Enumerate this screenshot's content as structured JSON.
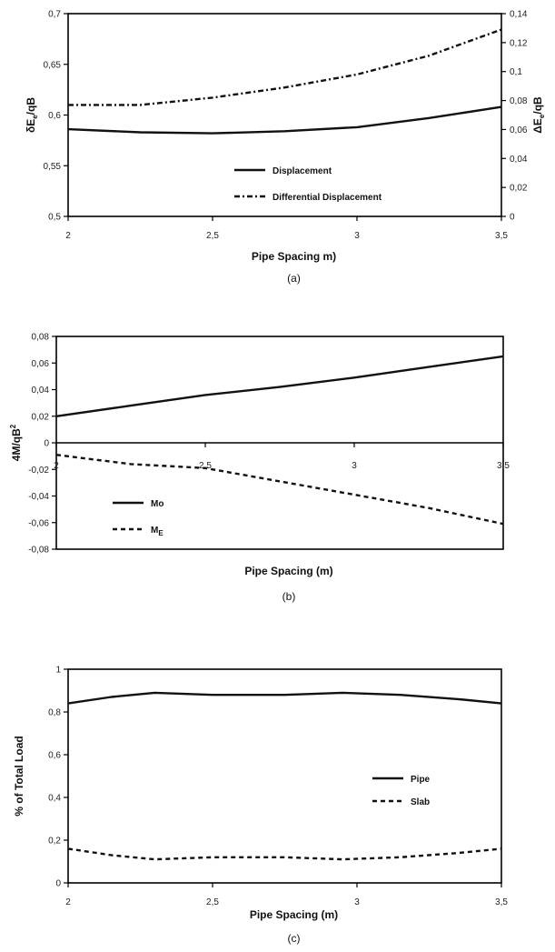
{
  "chart_data": [
    {
      "type": "line",
      "caption": "(a)",
      "xlabel": "Pipe Spacing m)",
      "ylabel": "δE",
      "ylabel_sub": "e",
      "ylabel_tail": "/qB",
      "y2label": "ΔE",
      "y2label_sub": "e",
      "y2label_tail": "/qB",
      "xlim": [
        2,
        3.5
      ],
      "ylim": [
        0.5,
        0.7
      ],
      "y2lim": [
        0,
        0.14
      ],
      "xticks": [
        "2",
        "2,5",
        "3",
        "3,5"
      ],
      "yticks": [
        "0,5",
        "0,55",
        "0,6",
        "0,65",
        "0,7"
      ],
      "y2ticks": [
        "0",
        "0,02",
        "0,04",
        "0,06",
        "0,08",
        "0,1",
        "0,12",
        "0,14"
      ],
      "legend_placement": "lower-center",
      "series": [
        {
          "name": "Displacement",
          "style": "solid",
          "axis": "left",
          "x": [
            2,
            2.25,
            2.5,
            2.75,
            3,
            3.25,
            3.5
          ],
          "y": [
            0.586,
            0.583,
            0.582,
            0.584,
            0.588,
            0.597,
            0.608
          ]
        },
        {
          "name": "Differential Displacement",
          "style": "dash-dot",
          "axis": "right",
          "x": [
            2,
            2.25,
            2.5,
            2.75,
            3,
            3.25,
            3.5
          ],
          "y": [
            0.077,
            0.077,
            0.082,
            0.089,
            0.098,
            0.111,
            0.129
          ]
        }
      ]
    },
    {
      "type": "line",
      "caption": "(b)",
      "xlabel": "Pipe Spacing (m)",
      "ylabel": "4M/qB",
      "ylabel_sup": "2",
      "xlim": [
        2,
        3.5
      ],
      "ylim": [
        -0.08,
        0.08
      ],
      "xticks": [
        "2",
        "2,5",
        "3",
        "3,5"
      ],
      "yticks": [
        "-0,08",
        "-0,06",
        "-0,04",
        "-0,02",
        "0",
        "0,02",
        "0,04",
        "0,06",
        "0,08"
      ],
      "legend_placement": "lower-left",
      "series": [
        {
          "name": "Mo",
          "style": "solid",
          "x": [
            2,
            2.25,
            2.5,
            2.75,
            3,
            3.25,
            3.5
          ],
          "y": [
            0.02,
            0.028,
            0.036,
            0.042,
            0.049,
            0.057,
            0.065
          ]
        },
        {
          "name": "M",
          "name_sub": "E",
          "style": "dashed",
          "x": [
            2,
            2.25,
            2.5,
            2.75,
            3,
            3.25,
            3.5
          ],
          "y": [
            -0.009,
            -0.016,
            -0.019,
            -0.029,
            -0.039,
            -0.049,
            -0.061
          ]
        }
      ]
    },
    {
      "type": "line",
      "caption": "(c)",
      "xlabel": "Pipe Spacing (m)",
      "ylabel": "% of Total Load",
      "xlim": [
        2,
        3.5
      ],
      "ylim": [
        0,
        1
      ],
      "xticks": [
        "2",
        "2,5",
        "3",
        "3,5"
      ],
      "yticks": [
        "0",
        "0,2",
        "0,4",
        "0,6",
        "0,8",
        "1"
      ],
      "legend_placement": "right-center",
      "series": [
        {
          "name": "Pipe",
          "style": "solid",
          "x": [
            2,
            2.15,
            2.3,
            2.5,
            2.75,
            2.95,
            3.15,
            3.35,
            3.5
          ],
          "y": [
            0.84,
            0.87,
            0.89,
            0.88,
            0.88,
            0.89,
            0.88,
            0.86,
            0.84
          ]
        },
        {
          "name": "Slab",
          "style": "dashed",
          "x": [
            2,
            2.15,
            2.3,
            2.5,
            2.75,
            2.95,
            3.15,
            3.35,
            3.5
          ],
          "y": [
            0.16,
            0.13,
            0.11,
            0.12,
            0.12,
            0.11,
            0.12,
            0.14,
            0.16
          ]
        }
      ]
    }
  ]
}
